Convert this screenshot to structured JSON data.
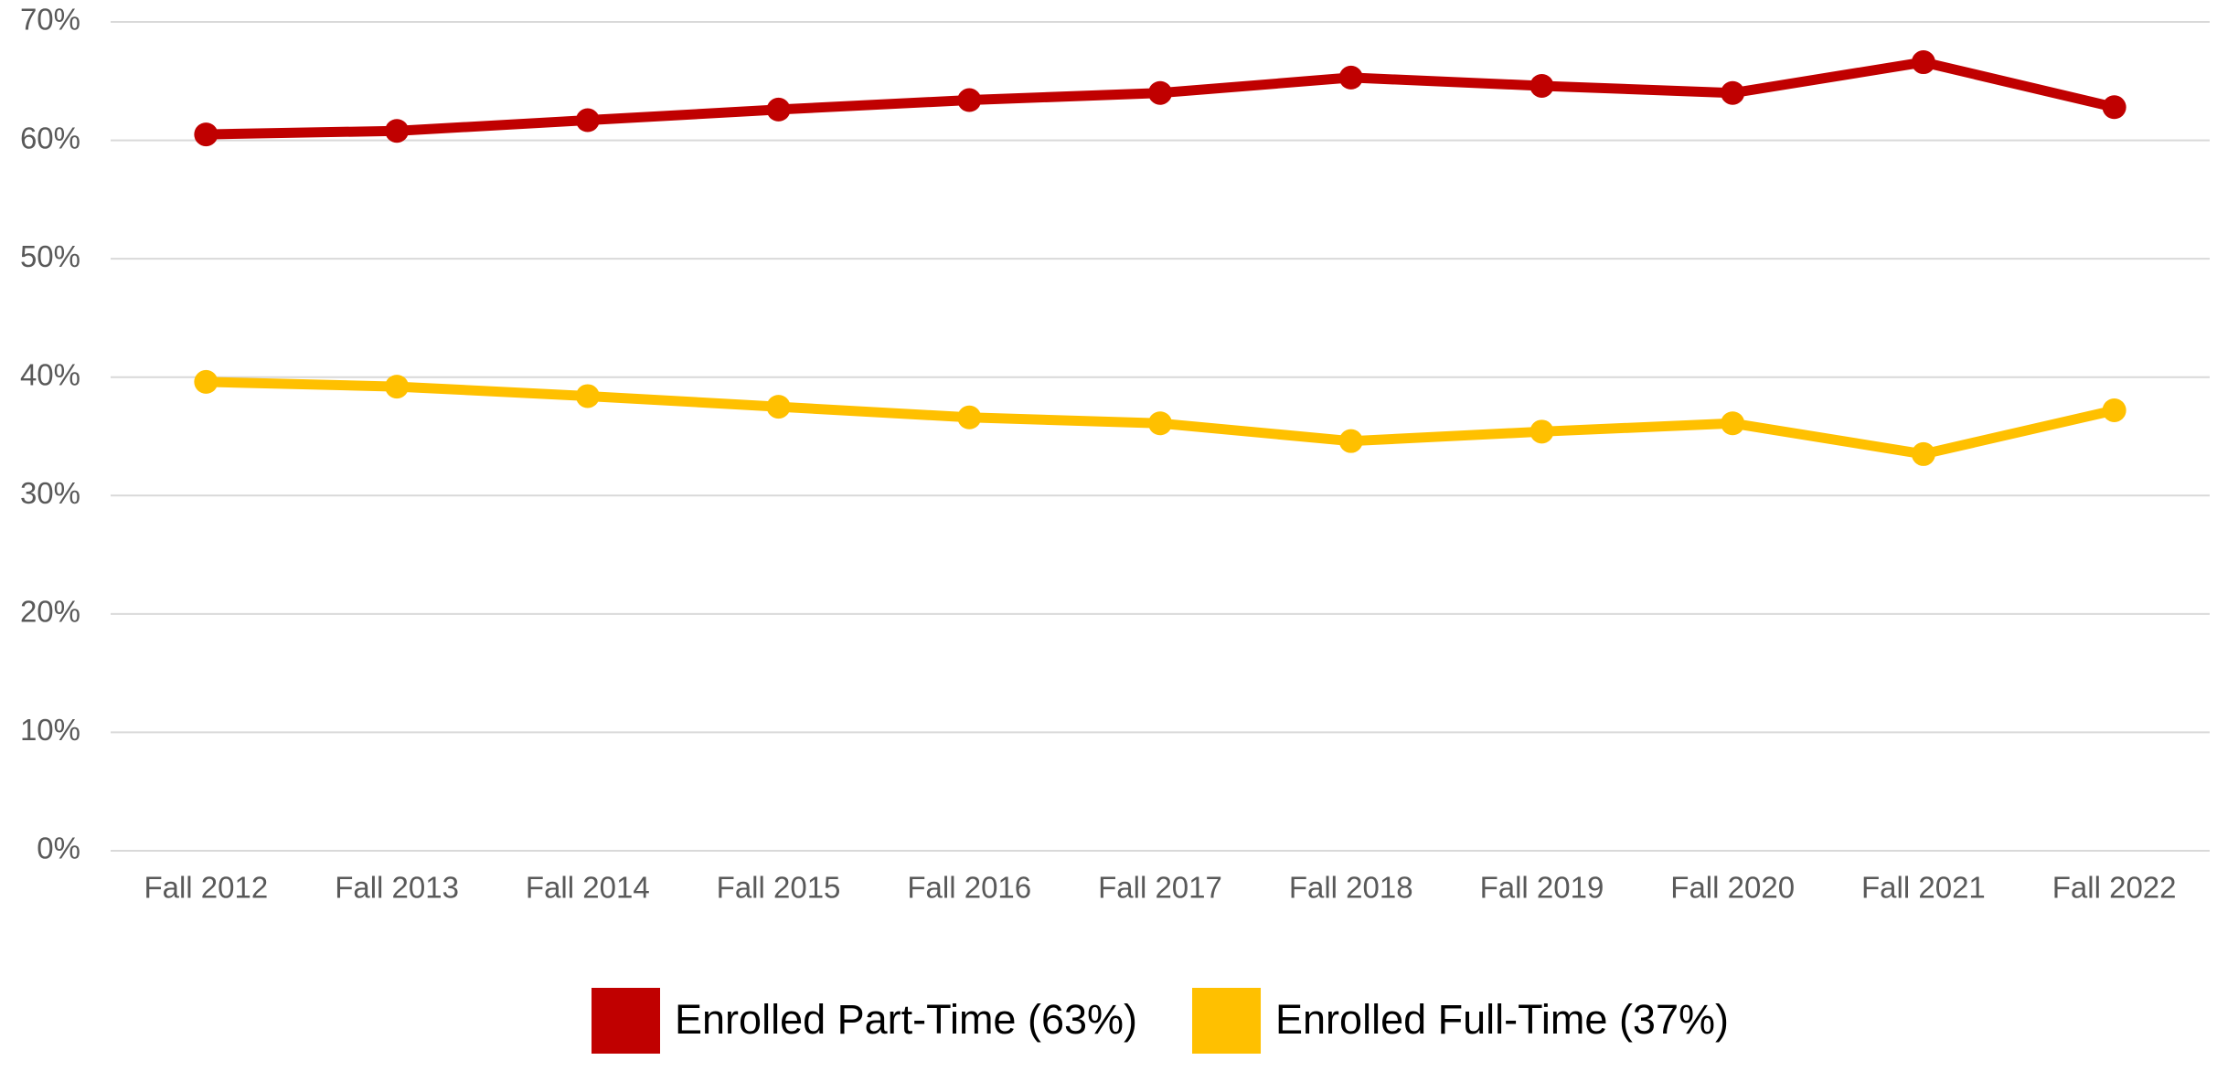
{
  "chart_data": {
    "type": "line",
    "categories": [
      "Fall 2012",
      "Fall 2013",
      "Fall 2014",
      "Fall 2015",
      "Fall 2016",
      "Fall 2017",
      "Fall 2018",
      "Fall 2019",
      "Fall 2020",
      "Fall 2021",
      "Fall 2022"
    ],
    "series": [
      {
        "name": "Enrolled Part-Time (63%)",
        "color": "#c00000",
        "values": [
          60.5,
          60.8,
          61.7,
          62.6,
          63.4,
          64.0,
          65.3,
          64.6,
          64.0,
          66.6,
          62.8
        ]
      },
      {
        "name": "Enrolled Full-Time (37%)",
        "color": "#ffc000",
        "values": [
          39.6,
          39.2,
          38.4,
          37.5,
          36.6,
          36.1,
          34.6,
          35.4,
          36.1,
          33.5,
          37.2
        ]
      }
    ],
    "ylim": [
      0,
      70
    ],
    "yticks": [
      {
        "value": 0,
        "label": "0%"
      },
      {
        "value": 10,
        "label": "10%"
      },
      {
        "value": 20,
        "label": "20%"
      },
      {
        "value": 30,
        "label": "30%"
      },
      {
        "value": 40,
        "label": "40%"
      },
      {
        "value": 50,
        "label": "50%"
      },
      {
        "value": 60,
        "label": "60%"
      },
      {
        "value": 70,
        "label": "70%"
      }
    ],
    "grid": true,
    "legend": "bottom"
  }
}
